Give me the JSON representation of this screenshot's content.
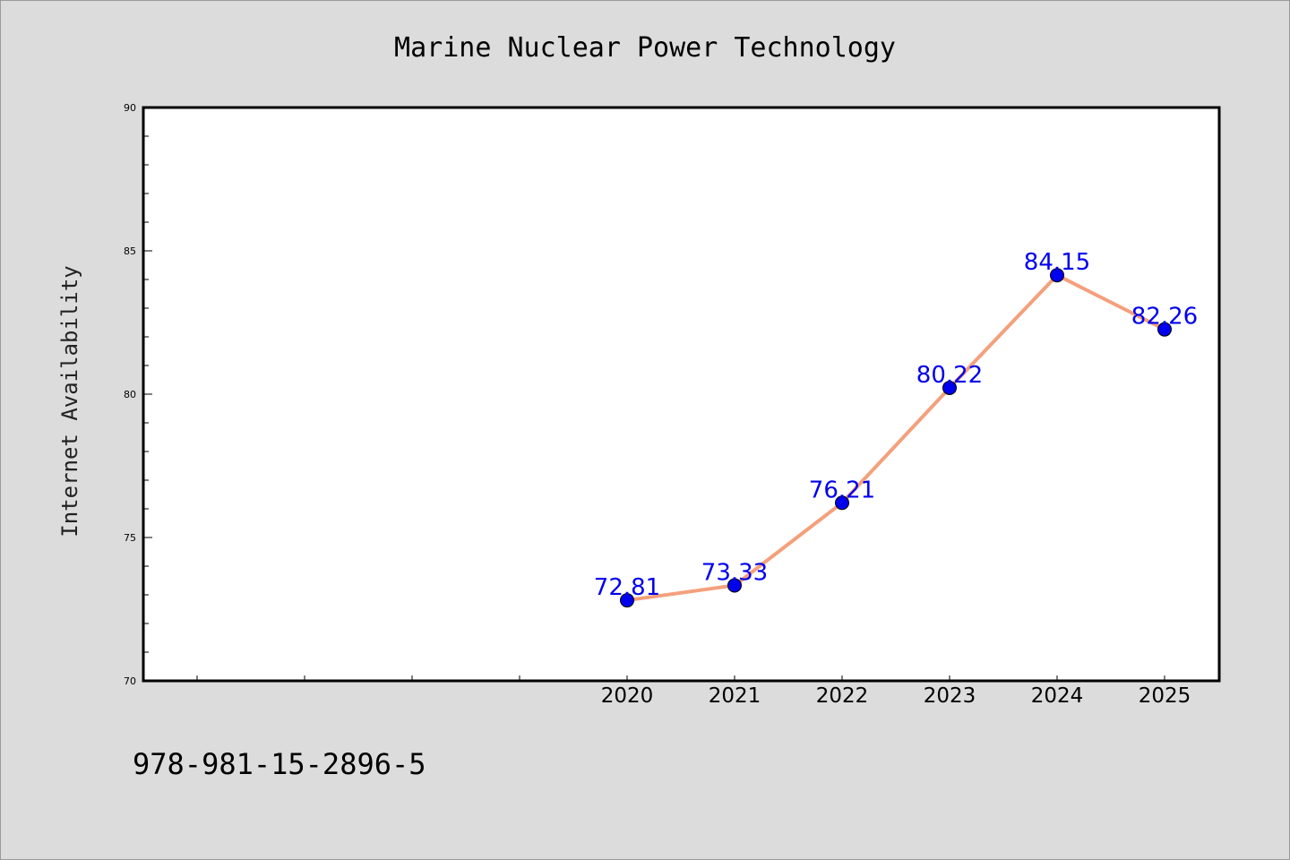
{
  "footer": {
    "text": "978-981-15-2896-5"
  },
  "chart_data": {
    "type": "line",
    "title": "Marine Nuclear Power Technology",
    "xlabel": "",
    "ylabel": "Internet Availability",
    "categories": [
      "2020",
      "2021",
      "2022",
      "2023",
      "2024",
      "2025"
    ],
    "values": [
      72.81,
      73.33,
      76.21,
      80.22,
      84.15,
      82.26
    ],
    "data_labels": [
      "72.81",
      "73.33",
      "76.21",
      "80.22",
      "84.15",
      "82.26"
    ],
    "ylim": [
      70,
      90
    ],
    "yticks": [
      70,
      75,
      80,
      85,
      90
    ],
    "grid": false,
    "legend": "none",
    "colors": {
      "line": "#f4a07c",
      "marker": "#0000ee",
      "label": "#0000ee",
      "plot_bg": "#ffffff",
      "page_bg": "#dcdcdc"
    }
  }
}
